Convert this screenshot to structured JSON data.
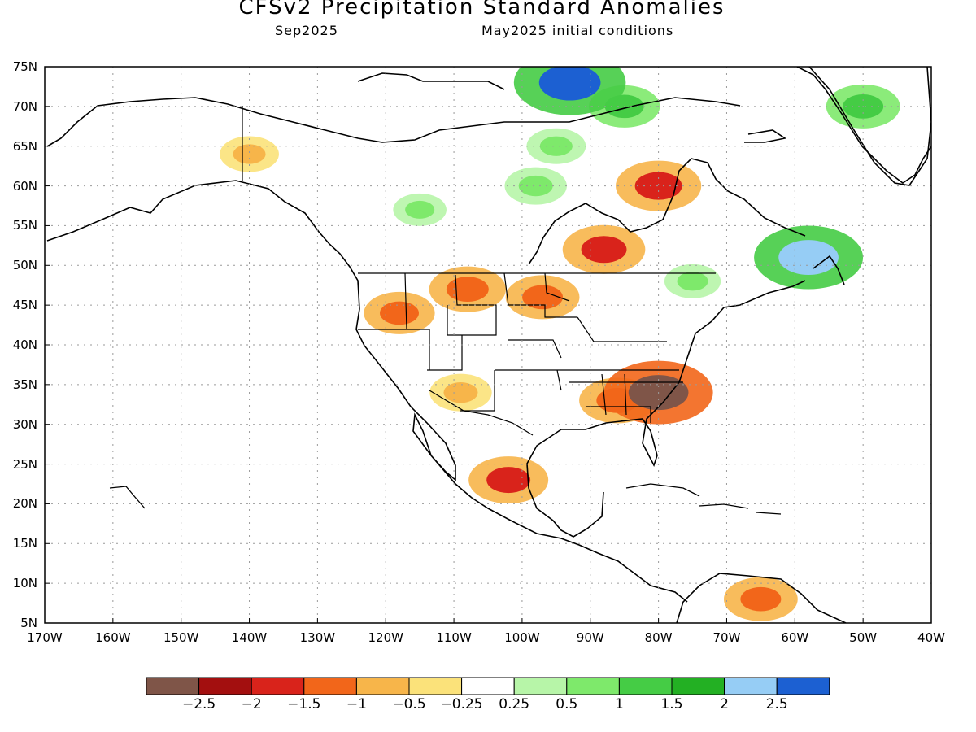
{
  "header": {
    "title": "CFSv2 Precipitation Standard Anomalies",
    "valid_month": "Sep2025",
    "initial_conditions": "May2025 initial conditions"
  },
  "axes": {
    "lat_labels": [
      "75N",
      "70N",
      "65N",
      "60N",
      "55N",
      "50N",
      "45N",
      "40N",
      "35N",
      "30N",
      "25N",
      "20N",
      "15N",
      "10N",
      "5N"
    ],
    "lon_labels": [
      "170W",
      "160W",
      "150W",
      "140W",
      "130W",
      "120W",
      "110W",
      "100W",
      "90W",
      "80W",
      "70W",
      "60W",
      "50W",
      "40W"
    ]
  },
  "colorbar": {
    "colors": [
      "#7f5548",
      "#a30f0f",
      "#d9231b",
      "#f2661a",
      "#f7b54a",
      "#fbe27a",
      "#ffffff",
      "#b7f5a8",
      "#7ee96b",
      "#45cc45",
      "#23b023",
      "#96cdf5",
      "#1c60d2"
    ],
    "labels": [
      "−2.5",
      "−2",
      "−1.5",
      "−1",
      "−0.5",
      "−0.25",
      "0.25",
      "0.5",
      "1",
      "1.5",
      "2",
      "2.5"
    ]
  },
  "map": {
    "lat_range": [
      5,
      75
    ],
    "lon_range": [
      -170,
      -40
    ],
    "anomaly_regions": [
      {
        "lon": -118,
        "lat": 44,
        "value": -1.2
      },
      {
        "lon": -108,
        "lat": 47,
        "value": -1.4
      },
      {
        "lon": -97,
        "lat": 46,
        "value": -1.3
      },
      {
        "lon": -88,
        "lat": 52,
        "value": -1.6
      },
      {
        "lon": -80,
        "lat": 60,
        "value": -1.7
      },
      {
        "lon": -86,
        "lat": 33,
        "value": -1.4
      },
      {
        "lon": -80,
        "lat": 34,
        "value": -2.5
      },
      {
        "lon": -102,
        "lat": 23,
        "value": -1.5
      },
      {
        "lon": -109,
        "lat": 34,
        "value": -0.9
      },
      {
        "lon": -140,
        "lat": 64,
        "value": -0.8
      },
      {
        "lon": -65,
        "lat": 8,
        "value": -1.3
      },
      {
        "lon": -95,
        "lat": 65,
        "value": 0.8
      },
      {
        "lon": -85,
        "lat": 70,
        "value": 1.2
      },
      {
        "lon": -50,
        "lat": 70,
        "value": 1.3
      },
      {
        "lon": -75,
        "lat": 48,
        "value": 0.7
      },
      {
        "lon": -115,
        "lat": 57,
        "value": 0.6
      },
      {
        "lon": -98,
        "lat": 60,
        "value": 0.9
      },
      {
        "lon": -58,
        "lat": 51,
        "value": 2.5
      },
      {
        "lon": -93,
        "lat": 73,
        "value": 2.6
      }
    ]
  }
}
